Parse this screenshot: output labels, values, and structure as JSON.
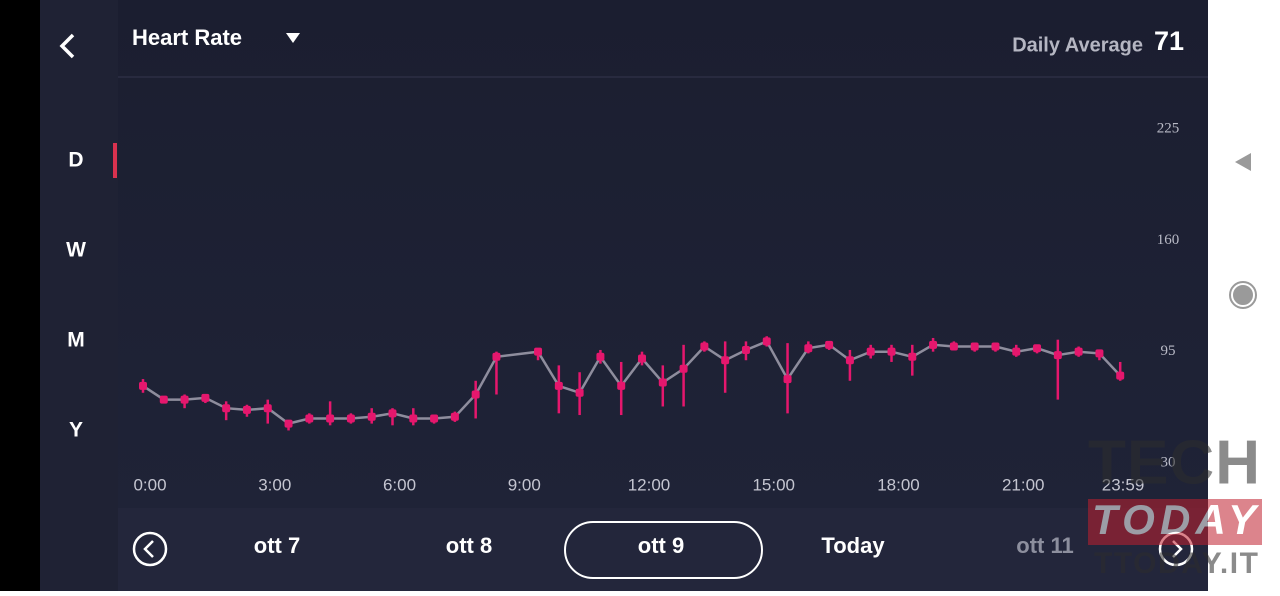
{
  "header": {
    "title": "Heart Rate",
    "average_label": "Daily Average",
    "average_value": 71
  },
  "sidebar": {
    "periods": [
      "D",
      "W",
      "M",
      "Y"
    ]
  },
  "chart_data": {
    "type": "line",
    "x": [
      0,
      0.5,
      1,
      1.5,
      2,
      2.5,
      3,
      3.5,
      4,
      4.5,
      5,
      5.5,
      6,
      6.5,
      7,
      7.5,
      8,
      8.5,
      9.5,
      10,
      10.5,
      11,
      11.5,
      12,
      12.5,
      13,
      13.5,
      14,
      14.5,
      15,
      15.5,
      16,
      16.5,
      17,
      17.5,
      18,
      18.5,
      19,
      19.5,
      20,
      20.5,
      21,
      21.5,
      22,
      22.5,
      23,
      23.5
    ],
    "values": [
      75,
      67,
      67,
      68,
      62,
      61,
      62,
      53,
      56,
      56,
      56,
      57,
      59,
      56,
      56,
      57,
      70,
      92,
      95,
      75,
      71,
      92,
      75,
      91,
      77,
      85,
      98,
      90,
      96,
      101,
      79,
      97,
      99,
      90,
      95,
      95,
      92,
      99,
      98,
      98,
      98,
      95,
      97,
      93,
      95,
      94,
      81
    ],
    "low": [
      71,
      66,
      62,
      65,
      55,
      57,
      53,
      49,
      53,
      52,
      53,
      53,
      52,
      52,
      53,
      54,
      56,
      70,
      90,
      59,
      58,
      88,
      58,
      87,
      63,
      63,
      95,
      71,
      90,
      98,
      59,
      94,
      96,
      78,
      91,
      89,
      81,
      95,
      96,
      95,
      95,
      92,
      94,
      67,
      92,
      90,
      78
    ],
    "high": [
      79,
      69,
      70,
      70,
      66,
      64,
      67,
      55,
      59,
      66,
      59,
      62,
      62,
      62,
      58,
      60,
      78,
      95,
      97,
      87,
      83,
      96,
      89,
      95,
      87,
      99,
      101,
      101,
      101,
      104,
      100,
      101,
      101,
      96,
      99,
      99,
      99,
      103,
      101,
      100,
      100,
      99,
      99,
      102,
      98,
      96,
      89
    ],
    "color": "#e5176d",
    "line_color": "#8e8d9d",
    "xlim": [
      0,
      24
    ],
    "xticks": [
      {
        "value": 0,
        "label": "0:00"
      },
      {
        "value": 3,
        "label": "3:00"
      },
      {
        "value": 6,
        "label": "6:00"
      },
      {
        "value": 9,
        "label": "9:00"
      },
      {
        "value": 12,
        "label": "12:00"
      },
      {
        "value": 15,
        "label": "15:00"
      },
      {
        "value": 18,
        "label": "18:00"
      },
      {
        "value": 21,
        "label": "21:00"
      },
      {
        "value": 23.983,
        "label": "23:59"
      }
    ],
    "ylim": [
      30,
      225
    ],
    "yticks": [
      30,
      95,
      160,
      225
    ]
  },
  "date_nav": {
    "dates": [
      "ott 7",
      "ott 8",
      "ott 9",
      "Today",
      "ott 11"
    ]
  },
  "watermark": {
    "lines": [
      "TECH",
      "TODAY",
      "TTODAY.IT"
    ]
  }
}
